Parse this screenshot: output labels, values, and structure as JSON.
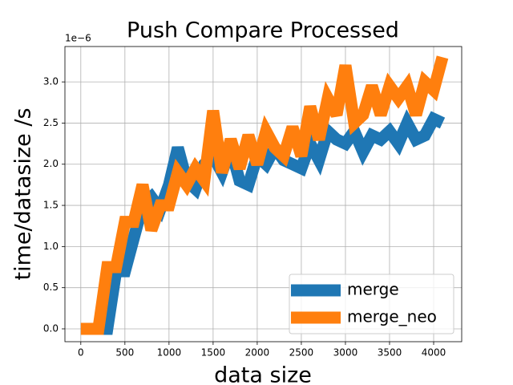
{
  "chart_data": {
    "type": "line",
    "title": "Push Compare Processed",
    "x_label": "data size",
    "y_label": "time/datasize /s",
    "y_offset": "1e−6",
    "x": [
      0,
      100,
      200,
      300,
      400,
      500,
      600,
      700,
      800,
      900,
      1000,
      1100,
      1200,
      1300,
      1400,
      1500,
      1600,
      1700,
      1800,
      1900,
      2000,
      2100,
      2200,
      2300,
      2400,
      2500,
      2600,
      2700,
      2800,
      2900,
      3000,
      3100,
      3200,
      3300,
      3400,
      3500,
      3600,
      3700,
      3800,
      3900,
      4000,
      4100
    ],
    "series": [
      {
        "name": "merge",
        "color": "#1f77b4",
        "values": [
          0,
          0,
          0,
          0,
          0.7,
          0.7,
          1.1,
          1.5,
          1.6,
          1.45,
          1.75,
          2.2,
          1.8,
          1.7,
          2.0,
          2.1,
          1.9,
          2.2,
          1.8,
          1.75,
          2.1,
          2.0,
          2.2,
          2.05,
          2.0,
          1.95,
          2.25,
          2.05,
          2.4,
          2.3,
          2.25,
          2.4,
          2.15,
          2.35,
          2.3,
          2.4,
          2.25,
          2.5,
          2.3,
          2.35,
          2.55,
          2.5
        ]
      },
      {
        "name": "merge_neo",
        "color": "#ff7f0e",
        "values": [
          0,
          0,
          0,
          0.75,
          0.75,
          1.3,
          1.3,
          1.75,
          1.2,
          1.5,
          1.5,
          1.9,
          1.75,
          1.95,
          1.8,
          2.65,
          1.9,
          2.3,
          1.95,
          2.35,
          2.0,
          2.4,
          2.2,
          2.1,
          2.45,
          2.1,
          2.7,
          2.3,
          2.8,
          2.6,
          3.2,
          2.5,
          2.6,
          2.95,
          2.6,
          2.95,
          2.8,
          2.95,
          2.6,
          3.0,
          2.9,
          3.3
        ]
      }
    ],
    "xlim": [
      -180,
      4318
    ],
    "xticks": [
      0,
      500,
      1000,
      1500,
      2000,
      2500,
      3000,
      3500,
      4000
    ],
    "ylim": [
      -0.156,
      3.43
    ],
    "yticks": [
      {
        "value": 0,
        "label": "0.0"
      },
      0.5,
      {
        "value": 1,
        "label": "1.0"
      },
      1.5,
      {
        "value": 2,
        "label": "2.0"
      },
      2.5,
      {
        "value": 3,
        "label": "3.0"
      }
    ],
    "grid": true,
    "legend": "lower right"
  }
}
